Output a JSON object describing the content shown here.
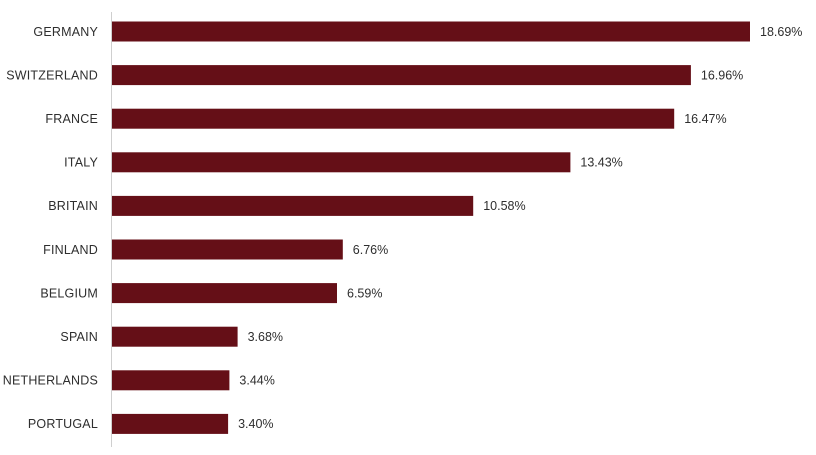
{
  "chart_data": {
    "type": "bar",
    "orientation": "horizontal",
    "categories": [
      "GERMANY",
      "SWITZERLAND",
      "FRANCE",
      "ITALY",
      "BRITAIN",
      "FINLAND",
      "BELGIUM",
      "SPAIN",
      "NETHERLANDS",
      "PORTUGAL"
    ],
    "values": [
      18.69,
      16.96,
      16.47,
      13.43,
      10.58,
      6.76,
      6.59,
      3.68,
      3.44,
      3.4
    ],
    "value_labels": [
      "18.69%",
      "16.96%",
      "16.47%",
      "13.43%",
      "10.58%",
      "6.76%",
      "6.59%",
      "3.68%",
      "3.44%",
      "3.40%"
    ],
    "xlim": [
      0,
      18.69
    ],
    "grid": false,
    "bar_color": "#650f17",
    "axis_color": "#cfcfcf"
  }
}
